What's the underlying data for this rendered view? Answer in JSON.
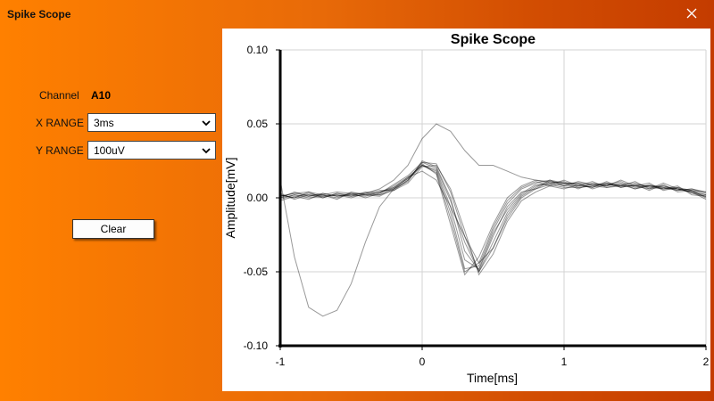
{
  "window": {
    "title": "Spike Scope"
  },
  "controls": {
    "channel_label": "Channel",
    "channel_value": "A10",
    "x_range_label": "X RANGE",
    "x_range_value": "3ms",
    "y_range_label": "Y RANGE",
    "y_range_value": "100uV",
    "clear_label": "Clear"
  },
  "colors": {
    "accent_left": "#ff8000",
    "accent_right": "#c43c00",
    "trace": "#000000"
  },
  "chart_data": {
    "type": "line",
    "title": "Spike Scope",
    "xlabel": "Time[ms]",
    "ylabel": "Amplitude[mV]",
    "xlim": [
      -1,
      2
    ],
    "ylim": [
      -0.1,
      0.1
    ],
    "x_ticks": [
      -1,
      0,
      1,
      2
    ],
    "y_ticks": [
      0.1,
      0.05,
      0.0,
      -0.05,
      -0.1
    ],
    "x_tick_labels": [
      "-1",
      "0",
      "1",
      "2"
    ],
    "y_tick_labels": [
      "0.10",
      "0.05",
      "0.00",
      "-0.05",
      "-0.10"
    ],
    "grid": true,
    "x": [
      -1.0,
      -0.9,
      -0.8,
      -0.7,
      -0.6,
      -0.5,
      -0.4,
      -0.3,
      -0.2,
      -0.1,
      0.0,
      0.1,
      0.2,
      0.3,
      0.4,
      0.5,
      0.6,
      0.7,
      0.8,
      0.9,
      1.0,
      1.1,
      1.2,
      1.3,
      1.4,
      1.5,
      1.6,
      1.7,
      1.8,
      1.9,
      2.0
    ],
    "series": [
      {
        "values": [
          0.0,
          0.002,
          0.001,
          0.002,
          0.0,
          0.003,
          0.002,
          0.004,
          0.006,
          0.012,
          0.024,
          0.02,
          -0.002,
          -0.03,
          -0.05,
          -0.03,
          -0.01,
          0.002,
          0.008,
          0.01,
          0.008,
          0.008,
          0.009,
          0.01,
          0.008,
          0.008,
          0.006,
          0.008,
          0.006,
          0.004,
          0.002
        ]
      },
      {
        "values": [
          0.002,
          0.0,
          0.003,
          0.001,
          0.002,
          0.001,
          0.004,
          0.003,
          0.008,
          0.014,
          0.022,
          0.018,
          -0.01,
          -0.048,
          -0.046,
          -0.022,
          -0.004,
          0.006,
          0.01,
          0.012,
          0.01,
          0.006,
          0.01,
          0.008,
          0.01,
          0.006,
          0.009,
          0.006,
          0.007,
          0.003,
          0.001
        ]
      },
      {
        "values": [
          -0.002,
          0.001,
          -0.001,
          0.003,
          0.001,
          0.002,
          0.003,
          0.002,
          0.005,
          0.01,
          0.021,
          0.022,
          0.006,
          -0.022,
          -0.052,
          -0.038,
          -0.016,
          -0.002,
          0.004,
          0.008,
          0.006,
          0.009,
          0.007,
          0.011,
          0.007,
          0.009,
          0.005,
          0.009,
          0.004,
          0.005,
          0.0
        ]
      },
      {
        "values": [
          0.001,
          0.003,
          0.002,
          0.0,
          0.003,
          0.002,
          0.001,
          0.004,
          0.007,
          0.013,
          0.023,
          0.016,
          -0.018,
          -0.052,
          -0.04,
          -0.018,
          0.0,
          0.008,
          0.012,
          0.01,
          0.011,
          0.007,
          0.008,
          0.009,
          0.011,
          0.007,
          0.008,
          0.007,
          0.005,
          0.006,
          0.003
        ]
      },
      {
        "values": [
          0.003,
          -0.001,
          0.002,
          0.002,
          -0.001,
          0.004,
          0.002,
          0.001,
          0.006,
          0.011,
          0.025,
          0.021,
          0.0,
          -0.036,
          -0.049,
          -0.026,
          -0.006,
          0.004,
          0.006,
          0.011,
          0.009,
          0.01,
          0.006,
          0.009,
          0.009,
          0.01,
          0.007,
          0.006,
          0.008,
          0.002,
          0.001
        ]
      },
      {
        "values": [
          -0.001,
          0.002,
          0.0,
          0.001,
          0.002,
          0.0,
          0.003,
          0.005,
          0.005,
          0.012,
          0.022,
          0.019,
          -0.006,
          -0.042,
          -0.048,
          -0.024,
          -0.008,
          0.003,
          0.009,
          0.009,
          0.012,
          0.008,
          0.011,
          0.007,
          0.008,
          0.011,
          0.006,
          0.01,
          0.006,
          0.004,
          -0.001
        ]
      },
      {
        "values": [
          0.0,
          0.004,
          0.001,
          0.003,
          0.001,
          0.003,
          0.0,
          0.003,
          0.009,
          0.015,
          0.024,
          0.023,
          0.004,
          -0.026,
          -0.05,
          -0.034,
          -0.012,
          0.001,
          0.007,
          0.012,
          0.008,
          0.011,
          0.009,
          0.008,
          0.012,
          0.008,
          0.01,
          0.005,
          0.007,
          0.005,
          0.002
        ]
      },
      {
        "values": [
          0.002,
          0.0,
          0.004,
          0.0,
          0.003,
          0.001,
          0.002,
          0.002,
          0.007,
          0.013,
          0.022,
          0.017,
          -0.014,
          -0.05,
          -0.044,
          -0.02,
          -0.002,
          0.007,
          0.011,
          0.008,
          0.01,
          0.009,
          0.007,
          0.01,
          0.007,
          0.009,
          0.008,
          0.008,
          0.005,
          0.006,
          0.004
        ]
      },
      {
        "values": [
          0.012,
          -0.04,
          -0.074,
          -0.08,
          -0.076,
          -0.058,
          -0.03,
          -0.006,
          0.006,
          0.014,
          0.018,
          0.012,
          -0.006,
          -0.026,
          -0.044,
          -0.034,
          -0.014,
          0.0,
          0.006,
          0.009,
          0.007,
          0.007,
          0.008,
          0.007,
          0.009,
          0.006,
          0.008,
          0.006,
          0.006,
          0.004,
          0.001
        ]
      },
      {
        "values": [
          0.001,
          0.003,
          0.004,
          0.002,
          0.004,
          0.003,
          0.003,
          0.006,
          0.012,
          0.022,
          0.04,
          0.05,
          0.045,
          0.032,
          0.022,
          0.022,
          0.018,
          0.014,
          0.012,
          0.011,
          0.01,
          0.01,
          0.009,
          0.009,
          0.008,
          0.008,
          0.008,
          0.007,
          0.006,
          0.005,
          0.004
        ]
      }
    ]
  }
}
